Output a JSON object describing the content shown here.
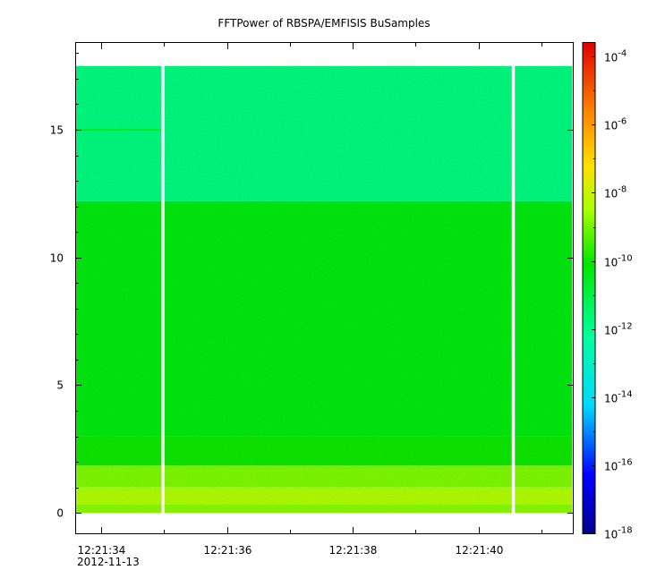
{
  "chart_data": {
    "type": "heatmap",
    "title": "FFTPower of RBSPA/EMFISIS  BuSamples",
    "xlabel": "",
    "ylabel": "",
    "date_label": "2012-11-13",
    "x_range_seconds": [
      "12:21:33.6",
      "12:21:41.5"
    ],
    "x_major_ticks": [
      {
        "t": "12:21:34",
        "label": "12:21:34"
      },
      {
        "t": "12:21:36",
        "label": "12:21:36"
      },
      {
        "t": "12:21:38",
        "label": "12:21:38"
      },
      {
        "t": "12:21:40",
        "label": "12:21:40"
      }
    ],
    "x_minor_ticks": [
      "12:21:35",
      "12:21:37",
      "12:21:39",
      "12:21:41"
    ],
    "y_range": [
      -0.8,
      18.4
    ],
    "y_ticks": [
      0,
      5,
      10,
      15
    ],
    "y_tick_labels": [
      "0",
      "5",
      "10",
      "15"
    ],
    "data_y_range": [
      0,
      17.5
    ],
    "data_gaps": [
      {
        "time": "12:21:34.98"
      },
      {
        "time": "12:21:40.55"
      }
    ],
    "bands": [
      {
        "y": [
          0.0,
          0.35
        ],
        "log10_power": -8.8
      },
      {
        "y": [
          0.35,
          1.0
        ],
        "log10_power": -8.4
      },
      {
        "y": [
          1.0,
          1.85
        ],
        "log10_power": -8.9
      },
      {
        "y": [
          1.85,
          3.0
        ],
        "log10_power": -10.0
      },
      {
        "y": [
          3.0,
          12.2
        ],
        "log10_power": -10.3
      },
      {
        "y": [
          12.2,
          17.5
        ],
        "log10_power": -11.8
      }
    ],
    "features": [
      {
        "description_value": 15.0,
        "x_range": [
          "12:21:33.6",
          "12:21:34.98"
        ],
        "log10_power": -10.5
      }
    ],
    "colorbar": {
      "scale": "log",
      "range_exp": [
        -18,
        -3.6
      ],
      "tick_exponents": [
        -4,
        -6,
        -8,
        -10,
        -12,
        -14,
        -16,
        -18
      ],
      "tick_base": "10",
      "tick_sup_labels": [
        "-4",
        "-6",
        "-8",
        "-10",
        "-12",
        "-14",
        "-16",
        "-18"
      ]
    }
  }
}
